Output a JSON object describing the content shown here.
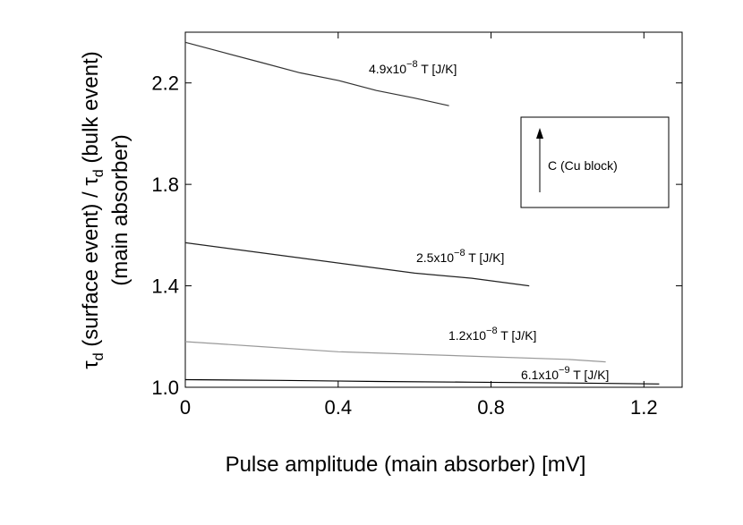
{
  "chart_data": {
    "type": "line",
    "xlabel": "Pulse amplitude (main absorber) [mV]",
    "ylabel_line1": "τd (surface event) / τd (bulk event)",
    "ylabel_line2": "(main absorber)",
    "xlim": [
      0,
      1.3
    ],
    "ylim": [
      1.0,
      2.4
    ],
    "xticks": [
      0,
      0.4,
      0.8,
      1.2
    ],
    "xtick_labels": [
      "0",
      "0.4",
      "0.8",
      "1.2"
    ],
    "yticks": [
      1.0,
      1.4,
      1.8,
      2.2
    ],
    "ytick_labels": [
      "1.0",
      "1.4",
      "1.8",
      "2.2"
    ],
    "grid": false,
    "series": [
      {
        "label_mantissa": "4.9x10",
        "label_exp": "−8",
        "label_unit": " T [J/K]",
        "color": "#333333",
        "x": [
          0.0,
          0.1,
          0.2,
          0.3,
          0.4,
          0.5,
          0.6,
          0.69
        ],
        "y": [
          2.36,
          2.32,
          2.28,
          2.24,
          2.21,
          2.17,
          2.14,
          2.11
        ]
      },
      {
        "label_mantissa": "2.5x10",
        "label_exp": "−8",
        "label_unit": " T [J/K]",
        "color": "#222222",
        "x": [
          0.0,
          0.15,
          0.3,
          0.45,
          0.6,
          0.75,
          0.9
        ],
        "y": [
          1.57,
          1.54,
          1.51,
          1.48,
          1.45,
          1.43,
          1.4
        ]
      },
      {
        "label_mantissa": "1.2x10",
        "label_exp": "−8",
        "label_unit": " T [J/K]",
        "color": "#999999",
        "x": [
          0.0,
          0.2,
          0.4,
          0.6,
          0.8,
          1.0,
          1.1
        ],
        "y": [
          1.18,
          1.16,
          1.14,
          1.13,
          1.12,
          1.11,
          1.1
        ]
      },
      {
        "label_mantissa": "6.1x10",
        "label_exp": "−9",
        "label_unit": " T [J/K]",
        "color": "#000000",
        "x": [
          0.0,
          0.25,
          0.5,
          0.75,
          1.0,
          1.24
        ],
        "y": [
          1.03,
          1.027,
          1.023,
          1.02,
          1.017,
          1.013
        ]
      }
    ],
    "legend_text": "C (Cu block)",
    "legend_placement": "right, upper-middle"
  }
}
